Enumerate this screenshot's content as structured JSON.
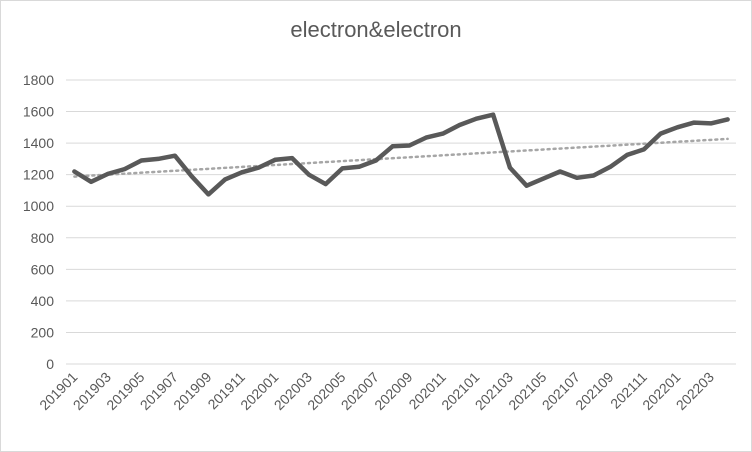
{
  "chart_data": {
    "type": "line",
    "title": "electron&electron",
    "xlabel": "",
    "ylabel": "",
    "ylim": [
      0,
      1800
    ],
    "yticks": [
      0,
      200,
      400,
      600,
      800,
      1000,
      1200,
      1400,
      1600,
      1800
    ],
    "grid": true,
    "legend": "none",
    "x": [
      "201901",
      "201902",
      "201903",
      "201904",
      "201905",
      "201906",
      "201907",
      "201908",
      "201909",
      "201910",
      "201911",
      "201912",
      "202001",
      "202002",
      "202003",
      "202004",
      "202005",
      "202006",
      "202007",
      "202008",
      "202009",
      "202010",
      "202011",
      "202012",
      "202101",
      "202102",
      "202103",
      "202104",
      "202105",
      "202106",
      "202107",
      "202108",
      "202109",
      "202110",
      "202111",
      "202112",
      "202201",
      "202202",
      "202203",
      "202204"
    ],
    "xtick_labels": [
      "201901",
      "201903",
      "201905",
      "201907",
      "201909",
      "201911",
      "202001",
      "202003",
      "202005",
      "202007",
      "202009",
      "202011",
      "202101",
      "202103",
      "202105",
      "202107",
      "202109",
      "202111",
      "202201",
      "202203"
    ],
    "series": [
      {
        "values": [
          1220,
          1155,
          1205,
          1235,
          1290,
          1300,
          1320,
          1190,
          1075,
          1170,
          1215,
          1245,
          1295,
          1305,
          1200,
          1140,
          1240,
          1250,
          1290,
          1380,
          1385,
          1435,
          1460,
          1515,
          1555,
          1580,
          1245,
          1130,
          1175,
          1220,
          1180,
          1195,
          1250,
          1325,
          1360,
          1460,
          1500,
          1530,
          1525,
          1550
        ],
        "color": "#595959"
      }
    ],
    "trendline": {
      "type": "linear",
      "color": "#a6a6a6",
      "style": "dotted"
    }
  }
}
